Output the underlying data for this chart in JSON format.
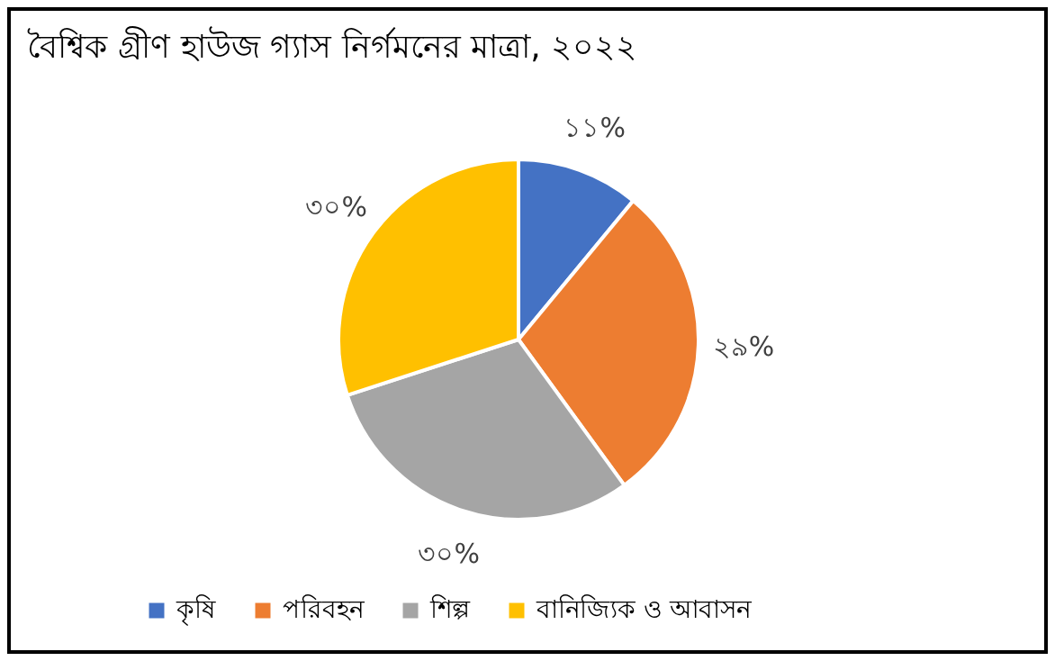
{
  "chart_data": {
    "type": "pie",
    "title": "বৈশ্বিক গ্রীণ হাউজ গ্যাস নির্গমনের মাত্রা, ২০২২",
    "categories": [
      "কৃষি",
      "পরিবহন",
      "শিল্প",
      "বানিজ্যিক ও আবাসন"
    ],
    "values": [
      11,
      29,
      30,
      30
    ],
    "value_labels": [
      "১১%",
      "২৯%",
      "৩০%",
      "৩০%"
    ],
    "colors": [
      "#4472c4",
      "#ed7d31",
      "#a5a5a5",
      "#ffc000"
    ],
    "legend": "bottom"
  }
}
